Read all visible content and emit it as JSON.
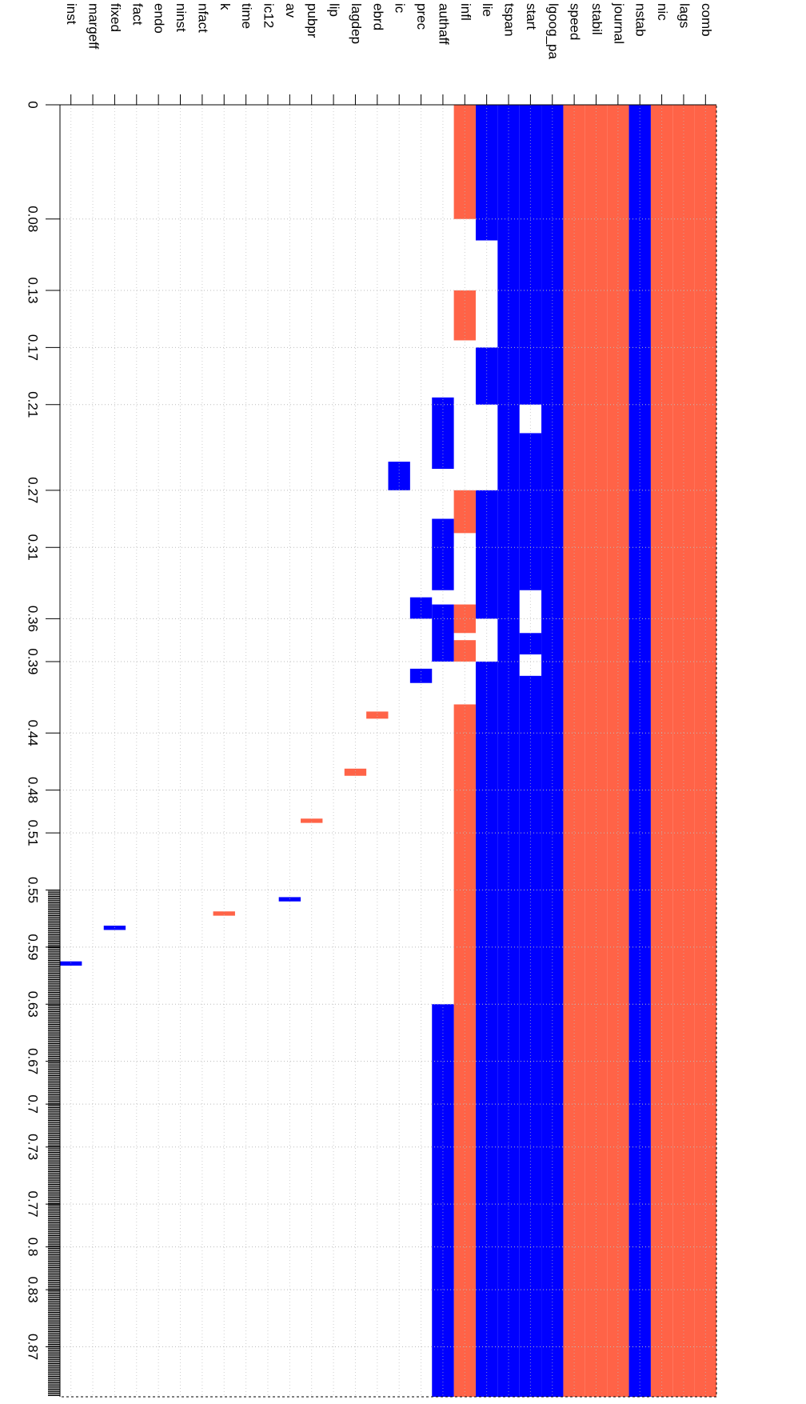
{
  "chart_data": {
    "type": "heatmap",
    "title": "",
    "variables": [
      "comb",
      "lags",
      "nic",
      "nstab",
      "journal",
      "stabil",
      "speed",
      "lgoog_pa",
      "start",
      "tspan",
      "lie",
      "infl",
      "authaff",
      "prec",
      "ic",
      "ebrd",
      "lagdep",
      "lip",
      "pubpr",
      "av",
      "ic12",
      "time",
      "k",
      "nfact",
      "ninst",
      "endo",
      "fact",
      "fixed",
      "margeff",
      "inst"
    ],
    "x_ticks": [
      "0",
      "0.08",
      "0.13",
      "0.17",
      "0.21",
      "0.27",
      "0.31",
      "0.36",
      "0.39",
      "0.44",
      "0.48",
      "0.51",
      "0.55",
      "0.59",
      "0.63",
      "0.67",
      "0.7",
      "0.73",
      "0.77",
      "0.8",
      "0.83",
      "0.87"
    ],
    "x_tick_values": [
      0,
      0.08,
      0.13,
      0.17,
      0.21,
      0.27,
      0.31,
      0.36,
      0.39,
      0.44,
      0.48,
      0.51,
      0.55,
      0.59,
      0.63,
      0.67,
      0.7,
      0.73,
      0.77,
      0.8,
      0.83,
      0.87
    ],
    "x_range": [
      0,
      0.905
    ],
    "grid": true,
    "legend": "none",
    "colors": {
      "positive": "#ff6347",
      "negative": "#0000ff",
      "background": "#ffffff"
    },
    "always_included": [
      {
        "variable": "comb",
        "sign": "positive",
        "from": 0,
        "to": 0.905
      },
      {
        "variable": "lags",
        "sign": "positive",
        "from": 0,
        "to": 0.905
      },
      {
        "variable": "nic",
        "sign": "positive",
        "from": 0,
        "to": 0.905
      },
      {
        "variable": "nstab",
        "sign": "negative",
        "from": 0,
        "to": 0.905
      },
      {
        "variable": "journal",
        "sign": "positive",
        "from": 0,
        "to": 0.905
      },
      {
        "variable": "stabil",
        "sign": "positive",
        "from": 0,
        "to": 0.905
      },
      {
        "variable": "speed",
        "sign": "positive",
        "from": 0,
        "to": 0.905
      }
    ],
    "segments": [
      {
        "variable": "lgoog_pa",
        "sign": "negative",
        "from": 0,
        "to": 0.36
      },
      {
        "variable": "lgoog_pa",
        "sign": "negative",
        "from": 0.36,
        "to": 0.905
      },
      {
        "variable": "start",
        "sign": "negative",
        "from": 0,
        "to": 0.21
      },
      {
        "variable": "start",
        "sign": "negative",
        "from": 0.23,
        "to": 0.34
      },
      {
        "variable": "start",
        "sign": "negative",
        "from": 0.37,
        "to": 0.385
      },
      {
        "variable": "start",
        "sign": "negative",
        "from": 0.4,
        "to": 0.905
      },
      {
        "variable": "tspan",
        "sign": "negative",
        "from": 0,
        "to": 0.36
      },
      {
        "variable": "tspan",
        "sign": "negative",
        "from": 0.36,
        "to": 0.905
      },
      {
        "variable": "lie",
        "sign": "negative",
        "from": 0,
        "to": 0.095
      },
      {
        "variable": "lie",
        "sign": "negative",
        "from": 0.17,
        "to": 0.21
      },
      {
        "variable": "lie",
        "sign": "negative",
        "from": 0.27,
        "to": 0.36
      },
      {
        "variable": "lie",
        "sign": "negative",
        "from": 0.39,
        "to": 0.905
      },
      {
        "variable": "infl",
        "sign": "positive",
        "from": 0,
        "to": 0.08
      },
      {
        "variable": "infl",
        "sign": "positive",
        "from": 0.13,
        "to": 0.165
      },
      {
        "variable": "infl",
        "sign": "positive",
        "from": 0.27,
        "to": 0.3
      },
      {
        "variable": "infl",
        "sign": "positive",
        "from": 0.35,
        "to": 0.37
      },
      {
        "variable": "infl",
        "sign": "positive",
        "from": 0.375,
        "to": 0.39
      },
      {
        "variable": "infl",
        "sign": "positive",
        "from": 0.42,
        "to": 0.905
      },
      {
        "variable": "authaff",
        "sign": "negative",
        "from": 0.205,
        "to": 0.255
      },
      {
        "variable": "authaff",
        "sign": "negative",
        "from": 0.29,
        "to": 0.34
      },
      {
        "variable": "authaff",
        "sign": "negative",
        "from": 0.35,
        "to": 0.39
      },
      {
        "variable": "authaff",
        "sign": "negative",
        "from": 0.63,
        "to": 0.905
      },
      {
        "variable": "prec",
        "sign": "negative",
        "from": 0.345,
        "to": 0.36
      },
      {
        "variable": "prec",
        "sign": "negative",
        "from": 0.395,
        "to": 0.405
      },
      {
        "variable": "ic",
        "sign": "negative",
        "from": 0.25,
        "to": 0.27
      },
      {
        "variable": "ebrd",
        "sign": "positive",
        "from": 0.425,
        "to": 0.43
      },
      {
        "variable": "lagdep",
        "sign": "positive",
        "from": 0.465,
        "to": 0.47
      },
      {
        "variable": "pubpr",
        "sign": "positive",
        "from": 0.5,
        "to": 0.503
      },
      {
        "variable": "av",
        "sign": "negative",
        "from": 0.555,
        "to": 0.558
      },
      {
        "variable": "k",
        "sign": "positive",
        "from": 0.565,
        "to": 0.568
      },
      {
        "variable": "fixed",
        "sign": "negative",
        "from": 0.575,
        "to": 0.578
      },
      {
        "variable": "inst",
        "sign": "negative",
        "from": 0.6,
        "to": 0.603
      }
    ]
  }
}
